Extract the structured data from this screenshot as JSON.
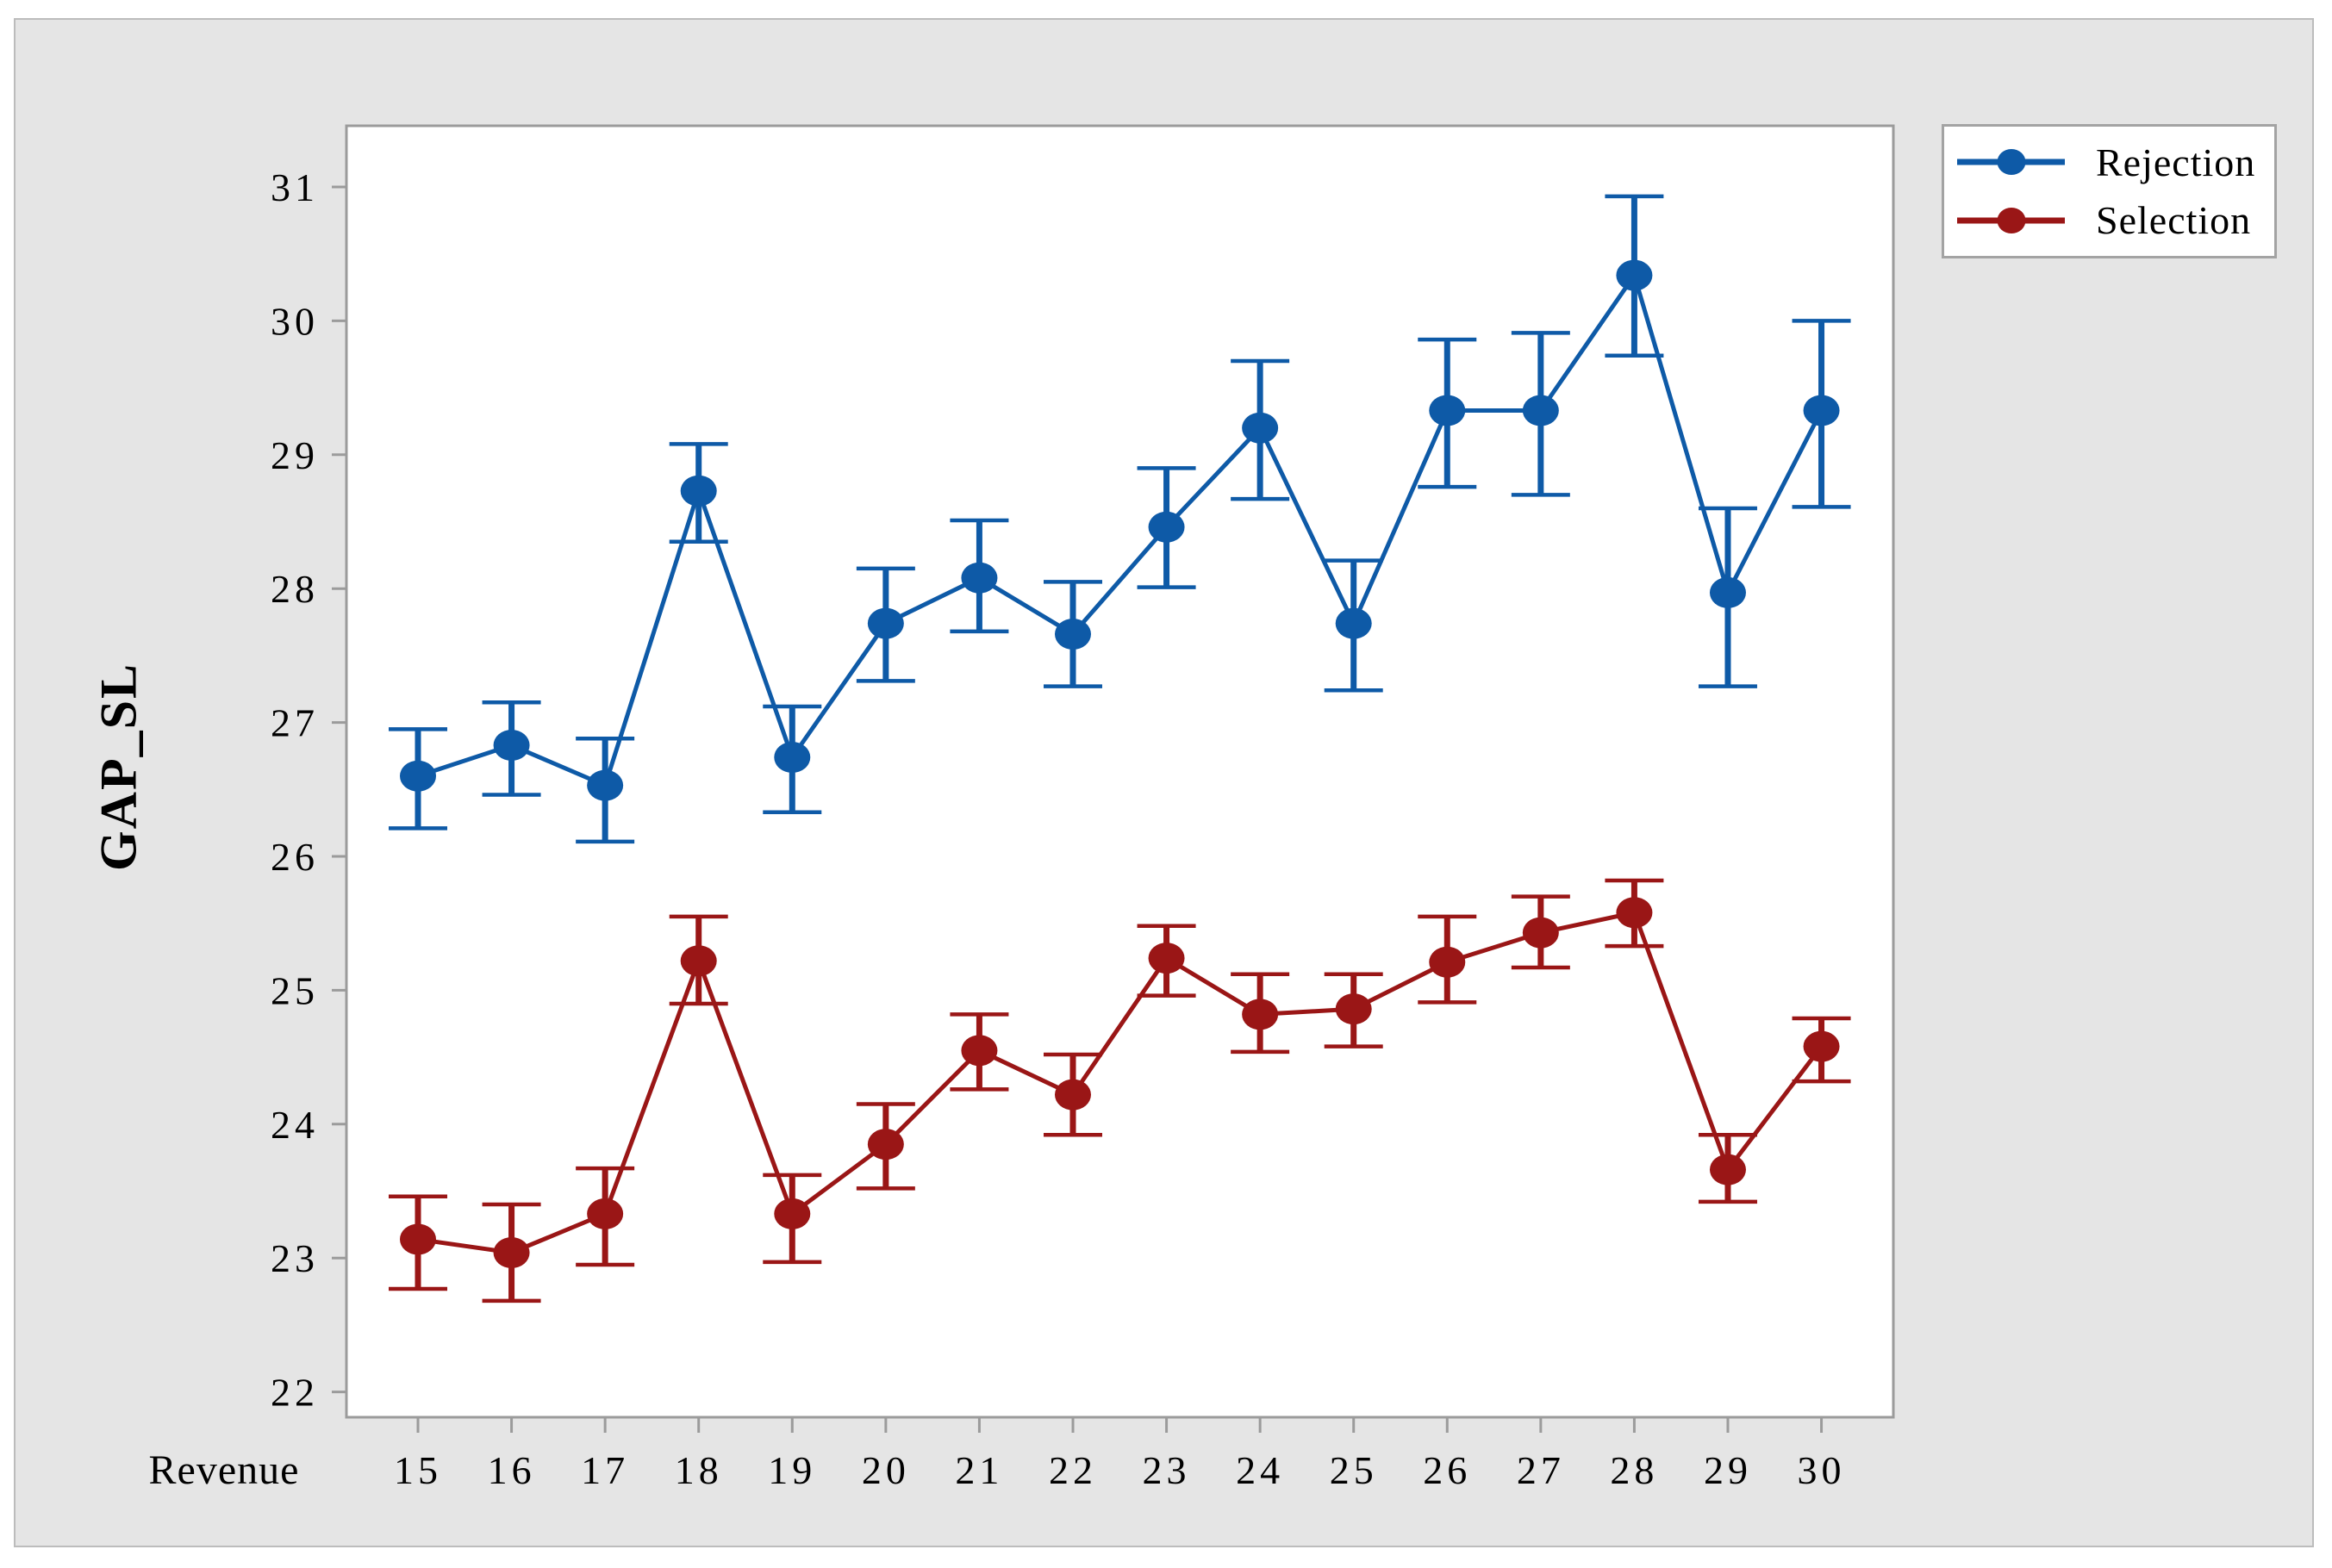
{
  "chart_data": {
    "type": "line",
    "title": "",
    "xlabel": "Revenue",
    "ylabel": "GAP_SL",
    "x": [
      15,
      16,
      17,
      18,
      19,
      20,
      21,
      22,
      23,
      24,
      25,
      26,
      27,
      28,
      29,
      30
    ],
    "y_ticks": [
      22,
      23,
      24,
      25,
      26,
      27,
      28,
      29,
      30,
      31
    ],
    "ylim": [
      21.8,
      31.45
    ],
    "grid": false,
    "legend_position": "top-right",
    "error_bars": true,
    "series": [
      {
        "name": "Rejection",
        "color": "#0e5aa7",
        "values": [
          26.6,
          26.83,
          26.53,
          28.73,
          26.74,
          27.74,
          28.08,
          27.66,
          28.46,
          29.2,
          27.74,
          29.33,
          29.33,
          30.34,
          27.97,
          29.33
        ],
        "err_low": [
          26.21,
          26.46,
          26.11,
          28.35,
          26.33,
          27.31,
          27.68,
          27.27,
          28.01,
          28.67,
          27.24,
          28.76,
          28.7,
          29.74,
          27.27,
          28.61
        ],
        "err_high": [
          26.95,
          27.15,
          26.88,
          29.08,
          27.12,
          28.15,
          28.51,
          28.05,
          28.9,
          29.7,
          28.21,
          29.86,
          29.91,
          30.93,
          28.6,
          30.0
        ]
      },
      {
        "name": "Selection",
        "color": "#9a1616",
        "values": [
          23.14,
          23.04,
          23.33,
          25.22,
          23.33,
          23.85,
          24.55,
          24.22,
          25.24,
          24.82,
          24.86,
          25.21,
          25.43,
          25.58,
          23.66,
          24.58
        ],
        "err_low": [
          22.77,
          22.68,
          22.95,
          24.9,
          22.97,
          23.52,
          24.26,
          23.92,
          24.96,
          24.54,
          24.58,
          24.91,
          25.17,
          25.33,
          23.42,
          24.32
        ],
        "err_high": [
          23.46,
          23.4,
          23.67,
          25.55,
          23.62,
          24.15,
          24.82,
          24.52,
          25.48,
          25.12,
          25.12,
          25.55,
          25.7,
          25.82,
          23.92,
          24.79
        ]
      }
    ],
    "colors": {
      "panel_background": "#e5e5e5",
      "plot_background": "#ffffff",
      "axis_line": "#9b9b9b",
      "panel_border": "#bcbcbc",
      "legend_border": "#a3a3a3"
    }
  }
}
